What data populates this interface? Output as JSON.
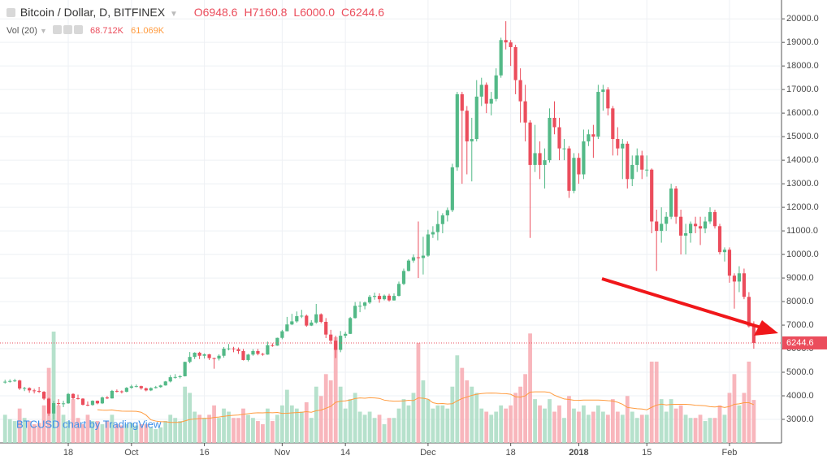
{
  "chart_data": {
    "type": "candlestick",
    "title": "Bitcoin / Dollar, D, BITFINEX",
    "legend": [
      {
        "key": "O",
        "value": "6948.6"
      },
      {
        "key": "H",
        "value": "7160.8"
      },
      {
        "key": "L",
        "value": "6000.0"
      },
      {
        "key": "C",
        "value": "6244.6"
      }
    ],
    "volume_legend": {
      "name": "Vol (20)",
      "value": "68.712K",
      "ma": "61.069K"
    },
    "watermark": "BTCUSD chart by TradingView",
    "up_color": "#53b987",
    "down_color": "#eb4d5c",
    "volume_up_color": "#a9dcc3",
    "volume_down_color": "#f7a9b0",
    "volume_ma_color": "#ff9b3f",
    "ylim": [
      2000,
      20800
    ],
    "yticks": [
      {
        "value": 3000,
        "label": "3000.0"
      },
      {
        "value": 4000,
        "label": "4000.0"
      },
      {
        "value": 5000,
        "label": "5000.0"
      },
      {
        "value": 6000,
        "label": "6000.0"
      },
      {
        "value": 7000,
        "label": "7000.0"
      },
      {
        "value": 8000,
        "label": "8000.0"
      },
      {
        "value": 9000,
        "label": "9000.0"
      },
      {
        "value": 10000,
        "label": "10000.0"
      },
      {
        "value": 11000,
        "label": "11000.0"
      },
      {
        "value": 12000,
        "label": "12000.0"
      },
      {
        "value": 13000,
        "label": "13000.0"
      },
      {
        "value": 14000,
        "label": "14000.0"
      },
      {
        "value": 15000,
        "label": "15000.0"
      },
      {
        "value": 16000,
        "label": "16000.0"
      },
      {
        "value": 17000,
        "label": "17000.0"
      },
      {
        "value": 18000,
        "label": "18000.0"
      },
      {
        "value": 19000,
        "label": "19000.0"
      },
      {
        "value": 20000,
        "label": "20000.0"
      }
    ],
    "xlim": [
      -1.04,
      159.7
    ],
    "xticks": [
      {
        "value": 13,
        "label": "18"
      },
      {
        "value": 26,
        "label": "Oct"
      },
      {
        "value": 41,
        "label": "16"
      },
      {
        "value": 57,
        "label": "Nov"
      },
      {
        "value": 70,
        "label": "14"
      },
      {
        "value": 87,
        "label": "Dec"
      },
      {
        "value": 104,
        "label": "18"
      },
      {
        "value": 118,
        "label": "2018"
      },
      {
        "value": 132,
        "label": "15"
      },
      {
        "value": 149,
        "label": "Feb"
      }
    ],
    "grid": true,
    "ohlc": [
      [
        4580,
        4680,
        4520,
        4600
      ],
      [
        4600,
        4700,
        4560,
        4630
      ],
      [
        4630,
        4720,
        4590,
        4650
      ],
      [
        4650,
        4680,
        4250,
        4310
      ],
      [
        4310,
        4380,
        4200,
        4330
      ],
      [
        4330,
        4360,
        4130,
        4230
      ],
      [
        4230,
        4300,
        4100,
        4210
      ],
      [
        4210,
        4380,
        4120,
        4170
      ],
      [
        4170,
        4200,
        3820,
        3880
      ],
      [
        3880,
        3920,
        3150,
        3250
      ],
      [
        3250,
        3780,
        2980,
        3690
      ],
      [
        3690,
        3860,
        3580,
        3680
      ],
      [
        3680,
        3790,
        3520,
        3680
      ],
      [
        3680,
        4120,
        3660,
        4080
      ],
      [
        4080,
        4110,
        3850,
        3900
      ],
      [
        3900,
        4050,
        3840,
        3880
      ],
      [
        3880,
        3900,
        3590,
        3620
      ],
      [
        3620,
        3760,
        3560,
        3610
      ],
      [
        3610,
        3810,
        3580,
        3790
      ],
      [
        3790,
        3800,
        3640,
        3680
      ],
      [
        3680,
        3970,
        3650,
        3930
      ],
      [
        3930,
        3990,
        3860,
        3890
      ],
      [
        3890,
        4250,
        3880,
        4210
      ],
      [
        4210,
        4270,
        4140,
        4190
      ],
      [
        4190,
        4230,
        4100,
        4170
      ],
      [
        4170,
        4370,
        4150,
        4340
      ],
      [
        4340,
        4470,
        4300,
        4400
      ],
      [
        4400,
        4480,
        4360,
        4410
      ],
      [
        4410,
        4430,
        4260,
        4320
      ],
      [
        4320,
        4350,
        4190,
        4230
      ],
      [
        4230,
        4360,
        4200,
        4330
      ],
      [
        4330,
        4420,
        4310,
        4370
      ],
      [
        4370,
        4470,
        4340,
        4440
      ],
      [
        4440,
        4630,
        4430,
        4610
      ],
      [
        4610,
        4880,
        4570,
        4790
      ],
      [
        4790,
        4920,
        4730,
        4800
      ],
      [
        4800,
        4880,
        4740,
        4830
      ],
      [
        4830,
        5450,
        4820,
        5440
      ],
      [
        5440,
        5860,
        5380,
        5650
      ],
      [
        5650,
        5850,
        5560,
        5830
      ],
      [
        5830,
        5870,
        5560,
        5700
      ],
      [
        5700,
        5800,
        5580,
        5760
      ],
      [
        5760,
        5780,
        5520,
        5600
      ],
      [
        5600,
        5620,
        5150,
        5580
      ],
      [
        5580,
        5760,
        5500,
        5700
      ],
      [
        5700,
        6070,
        5620,
        6000
      ],
      [
        6000,
        6200,
        5930,
        6010
      ],
      [
        6010,
        6080,
        5850,
        5980
      ],
      [
        5980,
        6050,
        5780,
        5900
      ],
      [
        5900,
        5990,
        5500,
        5520
      ],
      [
        5520,
        5780,
        5460,
        5750
      ],
      [
        5750,
        5980,
        5700,
        5900
      ],
      [
        5900,
        5990,
        5720,
        5780
      ],
      [
        5780,
        5820,
        5700,
        5750
      ],
      [
        5750,
        6300,
        5740,
        6150
      ],
      [
        6150,
        6230,
        6080,
        6130
      ],
      [
        6130,
        6470,
        6120,
        6460
      ],
      [
        6460,
        6800,
        6400,
        6740
      ],
      [
        6740,
        7350,
        6740,
        7030
      ],
      [
        7030,
        7480,
        7000,
        7160
      ],
      [
        7160,
        7580,
        7100,
        7380
      ],
      [
        7380,
        7650,
        7300,
        7400
      ],
      [
        7400,
        7450,
        6930,
        6980
      ],
      [
        6980,
        7210,
        6960,
        7110
      ],
      [
        7110,
        7900,
        7060,
        7460
      ],
      [
        7460,
        7500,
        7080,
        7140
      ],
      [
        7140,
        7300,
        6450,
        6600
      ],
      [
        6600,
        6800,
        6200,
        6340
      ],
      [
        6340,
        6550,
        5600,
        5950
      ],
      [
        5950,
        6750,
        5850,
        6550
      ],
      [
        6550,
        6720,
        6450,
        6630
      ],
      [
        6630,
        7350,
        6620,
        7300
      ],
      [
        7300,
        7980,
        7280,
        7820
      ],
      [
        7820,
        8000,
        7550,
        7820
      ],
      [
        7820,
        8000,
        7670,
        7960
      ],
      [
        7960,
        8280,
        7900,
        8200
      ],
      [
        8200,
        8380,
        8080,
        8240
      ],
      [
        8240,
        8350,
        7950,
        8100
      ],
      [
        8100,
        8300,
        8050,
        8250
      ],
      [
        8250,
        8330,
        8000,
        8050
      ],
      [
        8050,
        8350,
        8040,
        8240
      ],
      [
        8240,
        8850,
        8220,
        8750
      ],
      [
        8750,
        9400,
        8700,
        9300
      ],
      [
        9300,
        9800,
        9280,
        9740
      ],
      [
        9740,
        10000,
        9650,
        9880
      ],
      [
        9880,
        11400,
        9000,
        9850
      ],
      [
        9850,
        10750,
        9150,
        9950
      ],
      [
        9950,
        11050,
        9900,
        10850
      ],
      [
        10850,
        11200,
        10700,
        10950
      ],
      [
        10950,
        11850,
        10600,
        11290
      ],
      [
        11290,
        11750,
        10900,
        11660
      ],
      [
        11660,
        11990,
        11400,
        11880
      ],
      [
        11880,
        13850,
        11800,
        13700
      ],
      [
        13700,
        16900,
        13550,
        16800
      ],
      [
        16800,
        16900,
        13000,
        16100
      ],
      [
        16100,
        16300,
        13400,
        14800
      ],
      [
        14800,
        15800,
        13100,
        14900
      ],
      [
        14900,
        17400,
        14800,
        16700
      ],
      [
        16700,
        17500,
        16300,
        17200
      ],
      [
        17200,
        17300,
        16000,
        16400
      ],
      [
        16400,
        16900,
        15900,
        16600
      ],
      [
        16600,
        17900,
        16500,
        17600
      ],
      [
        17600,
        19200,
        17500,
        19100
      ],
      [
        19100,
        19900,
        18700,
        19000
      ],
      [
        19000,
        19100,
        18000,
        18800
      ],
      [
        18800,
        18900,
        16800,
        17400
      ],
      [
        17400,
        17900,
        15600,
        16500
      ],
      [
        16500,
        17200,
        14800,
        15600
      ],
      [
        15600,
        15700,
        10700,
        13800
      ],
      [
        13800,
        15500,
        13500,
        14300
      ],
      [
        14300,
        14800,
        13200,
        13800
      ],
      [
        13800,
        14500,
        12800,
        14000
      ],
      [
        14000,
        16200,
        13900,
        15800
      ],
      [
        15800,
        16500,
        15100,
        15400
      ],
      [
        15400,
        15800,
        14000,
        14500
      ],
      [
        14500,
        14900,
        14000,
        14500
      ],
      [
        14500,
        14600,
        12400,
        12700
      ],
      [
        12700,
        14300,
        12600,
        14100
      ],
      [
        14100,
        14300,
        13000,
        13400
      ],
      [
        13400,
        15300,
        13200,
        14800
      ],
      [
        14800,
        15300,
        14600,
        15100
      ],
      [
        15100,
        15500,
        14100,
        15000
      ],
      [
        15000,
        17200,
        14900,
        16900
      ],
      [
        16900,
        17200,
        16100,
        17000
      ],
      [
        17000,
        17100,
        15900,
        16200
      ],
      [
        16200,
        16300,
        14200,
        14900
      ],
      [
        14900,
        15400,
        14200,
        14500
      ],
      [
        14500,
        14900,
        13200,
        14700
      ],
      [
        14700,
        14800,
        12800,
        13200
      ],
      [
        13200,
        14200,
        12900,
        13800
      ],
      [
        13800,
        14500,
        13500,
        14200
      ],
      [
        14200,
        14400,
        13200,
        13600
      ],
      [
        13600,
        14200,
        13300,
        13600
      ],
      [
        13600,
        13650,
        10900,
        11400
      ],
      [
        11400,
        11900,
        9300,
        11000
      ],
      [
        11000,
        12000,
        10500,
        11300
      ],
      [
        11300,
        11800,
        11000,
        11600
      ],
      [
        11600,
        13000,
        11500,
        12800
      ],
      [
        12800,
        12900,
        11300,
        11600
      ],
      [
        11600,
        11900,
        10000,
        10800
      ],
      [
        10800,
        11300,
        10000,
        10900
      ],
      [
        10900,
        11400,
        10500,
        11300
      ],
      [
        11300,
        11600,
        10900,
        11200
      ],
      [
        11200,
        11600,
        10400,
        11100
      ],
      [
        11100,
        11600,
        10900,
        11400
      ],
      [
        11400,
        12000,
        11300,
        11800
      ],
      [
        11800,
        11900,
        11100,
        11200
      ],
      [
        11200,
        11300,
        10000,
        10100
      ],
      [
        10100,
        10300,
        9700,
        10200
      ],
      [
        10200,
        10300,
        8800,
        9100
      ],
      [
        9100,
        9200,
        7700,
        8850
      ],
      [
        8850,
        9500,
        8400,
        9200
      ],
      [
        9200,
        9400,
        8100,
        8200
      ],
      [
        8200,
        8400,
        6900,
        6950
      ],
      [
        6948.6,
        7160.8,
        6000,
        6244.6
      ]
    ],
    "volume": [
      45,
      38,
      35,
      55,
      40,
      35,
      30,
      32,
      60,
      120,
      178,
      60,
      45,
      35,
      70,
      40,
      30,
      45,
      35,
      35,
      30,
      35,
      45,
      30,
      28,
      30,
      32,
      28,
      30,
      30,
      25,
      22,
      25,
      35,
      45,
      40,
      35,
      90,
      80,
      50,
      45,
      40,
      45,
      60,
      40,
      55,
      50,
      40,
      40,
      55,
      45,
      40,
      35,
      30,
      55,
      35,
      45,
      60,
      85,
      60,
      55,
      50,
      65,
      40,
      90,
      75,
      110,
      100,
      169,
      90,
      55,
      70,
      80,
      50,
      45,
      50,
      40,
      45,
      30,
      40,
      40,
      55,
      70,
      60,
      80,
      160,
      100,
      70,
      55,
      60,
      60,
      55,
      90,
      140,
      120,
      100,
      90,
      80,
      55,
      50,
      45,
      50,
      60,
      55,
      60,
      80,
      90,
      110,
      175,
      70,
      60,
      55,
      70,
      50,
      60,
      40,
      75,
      55,
      50,
      60,
      45,
      50,
      60,
      50,
      45,
      70,
      50,
      45,
      75,
      50,
      40,
      45,
      45,
      130,
      130,
      70,
      50,
      70,
      55,
      60,
      45,
      40,
      40,
      45,
      35,
      40,
      40,
      60,
      45,
      80,
      110,
      60,
      80,
      130,
      68.712
    ]
  }
}
